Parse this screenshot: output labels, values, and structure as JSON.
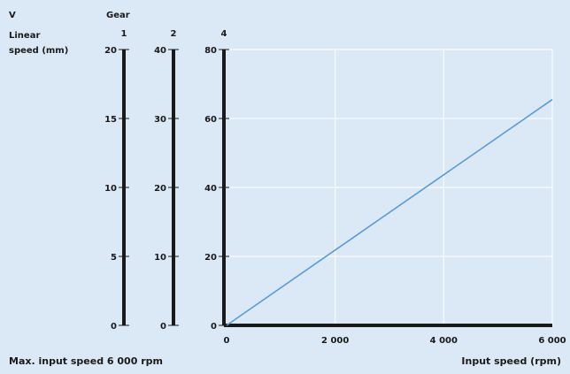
{
  "labels": {
    "v": "V",
    "linear_speed_line1": "Linear",
    "linear_speed_line2": "speed (mm)",
    "gear": "Gear",
    "max_input": "Max. input speed 6 000 rpm"
  },
  "colors": {
    "background": "#dbe9f6",
    "axis": "#1a1a1a",
    "grid": "#ffffff",
    "series": "#5b9bd5"
  },
  "chart_data": {
    "type": "line",
    "xlabel": "Input speed (rpm)",
    "xlim": [
      0,
      6000
    ],
    "x_ticks": [
      {
        "value": 0,
        "label": "0"
      },
      {
        "value": 2000,
        "label": "2 000"
      },
      {
        "value": 4000,
        "label": "4 000"
      },
      {
        "value": 6000,
        "label": "6 000"
      }
    ],
    "grid": true,
    "gear_axes": [
      {
        "gear": "1",
        "max": 20,
        "ticks": [
          {
            "value": 0,
            "label": "0"
          },
          {
            "value": 5,
            "label": "5"
          },
          {
            "value": 10,
            "label": "10"
          },
          {
            "value": 15,
            "label": "15"
          },
          {
            "value": 20,
            "label": "20"
          }
        ]
      },
      {
        "gear": "2",
        "max": 40,
        "ticks": [
          {
            "value": 0,
            "label": "0"
          },
          {
            "value": 10,
            "label": "10"
          },
          {
            "value": 20,
            "label": "20"
          },
          {
            "value": 30,
            "label": "30"
          },
          {
            "value": 40,
            "label": "40"
          }
        ]
      },
      {
        "gear": "4",
        "max": 80,
        "ticks": [
          {
            "value": 0,
            "label": "0"
          },
          {
            "value": 20,
            "label": "20"
          },
          {
            "value": 40,
            "label": "40"
          },
          {
            "value": 60,
            "label": "60"
          },
          {
            "value": 80,
            "label": "80"
          }
        ]
      }
    ],
    "series": [
      {
        "x": [
          0,
          6000
        ],
        "y": [
          0,
          65.5
        ]
      }
    ]
  }
}
